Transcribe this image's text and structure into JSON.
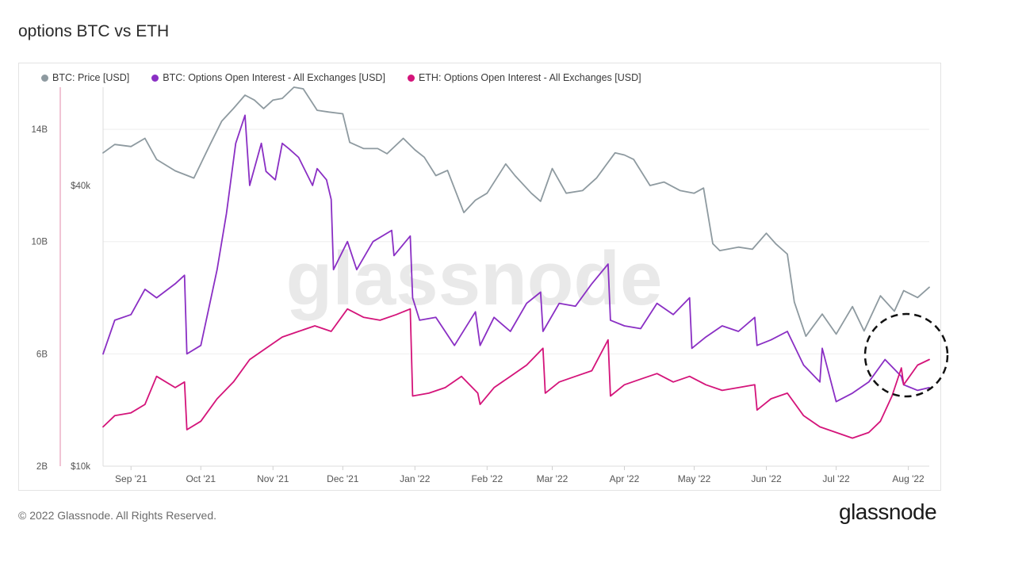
{
  "title": "options BTC vs ETH",
  "footer": "© 2022 Glassnode. All Rights Reserved.",
  "brand": "glassnode",
  "watermark": "glassnode",
  "colors": {
    "btc_price": "#8e9aa0",
    "btc_oi": "#8a2fc4",
    "eth_oi": "#d4147a",
    "grid": "#eeeeee",
    "axis_text": "#555555",
    "watermark": "#e9e9e9"
  },
  "chart_data": {
    "type": "line",
    "title": "options BTC vs ETH",
    "x_ticks": [
      "Sep '21",
      "Oct '21",
      "Nov '21",
      "Dec '21",
      "Jan '22",
      "Feb '22",
      "Mar '22",
      "Apr '22",
      "May '22",
      "Jun '22",
      "Jul '22",
      "Aug '22"
    ],
    "x_range": [
      "2021-08-20",
      "2022-08-10"
    ],
    "left_axis": {
      "ticks": [
        "2B",
        "6B",
        "10B",
        "14B"
      ],
      "range": [
        2,
        15.5
      ]
    },
    "price_axis": {
      "ticks": [
        "$10k",
        "$40k"
      ],
      "scale": "log",
      "range": [
        10000,
        65000
      ]
    },
    "grid": true,
    "legend_position": "top-left",
    "series": [
      {
        "name": "BTC: Price [USD]",
        "axis": "price",
        "dates": [
          "2021-08-20",
          "2021-08-25",
          "2021-09-01",
          "2021-09-07",
          "2021-09-12",
          "2021-09-20",
          "2021-09-28",
          "2021-10-05",
          "2021-10-10",
          "2021-10-15",
          "2021-10-20",
          "2021-10-24",
          "2021-10-28",
          "2021-11-01",
          "2021-11-05",
          "2021-11-10",
          "2021-11-14",
          "2021-11-20",
          "2021-11-25",
          "2021-12-01",
          "2021-12-04",
          "2021-12-10",
          "2021-12-16",
          "2021-12-20",
          "2021-12-27",
          "2022-01-01",
          "2022-01-05",
          "2022-01-10",
          "2022-01-15",
          "2022-01-22",
          "2022-01-27",
          "2022-02-01",
          "2022-02-09",
          "2022-02-13",
          "2022-02-20",
          "2022-02-24",
          "2022-03-01",
          "2022-03-07",
          "2022-03-14",
          "2022-03-20",
          "2022-03-28",
          "2022-04-01",
          "2022-04-05",
          "2022-04-12",
          "2022-04-18",
          "2022-04-25",
          "2022-05-01",
          "2022-05-05",
          "2022-05-09",
          "2022-05-12",
          "2022-05-20",
          "2022-05-26",
          "2022-06-01",
          "2022-06-05",
          "2022-06-10",
          "2022-06-13",
          "2022-06-18",
          "2022-06-25",
          "2022-07-01",
          "2022-07-08",
          "2022-07-13",
          "2022-07-20",
          "2022-07-26",
          "2022-07-30",
          "2022-08-05",
          "2022-08-10"
        ],
        "values": [
          47000,
          49000,
          48500,
          50500,
          45500,
          43000,
          41500,
          49000,
          55000,
          58500,
          62500,
          61000,
          58500,
          61000,
          61500,
          65000,
          64500,
          58000,
          57500,
          57000,
          49500,
          48000,
          48000,
          46800,
          50500,
          47700,
          46000,
          42000,
          43100,
          35000,
          37200,
          38500,
          44500,
          42000,
          38500,
          37000,
          43500,
          38500,
          39000,
          41500,
          47000,
          46500,
          45500,
          40000,
          40700,
          39000,
          38500,
          39500,
          30000,
          29000,
          29500,
          29200,
          31600,
          30000,
          28500,
          22500,
          19000,
          21200,
          19200,
          22000,
          19500,
          23200,
          21500,
          23800,
          23000,
          24200
        ]
      },
      {
        "name": "BTC: Options Open Interest - All Exchanges [USD]",
        "axis": "left",
        "dates": [
          "2021-08-20",
          "2021-08-25",
          "2021-09-01",
          "2021-09-07",
          "2021-09-12",
          "2021-09-20",
          "2021-09-24",
          "2021-09-25",
          "2021-10-01",
          "2021-10-08",
          "2021-10-12",
          "2021-10-16",
          "2021-10-20",
          "2021-10-22",
          "2021-10-27",
          "2021-10-29",
          "2021-11-02",
          "2021-11-05",
          "2021-11-08",
          "2021-11-12",
          "2021-11-18",
          "2021-11-20",
          "2021-11-24",
          "2021-11-26",
          "2021-11-27",
          "2021-12-03",
          "2021-12-07",
          "2021-12-14",
          "2021-12-22",
          "2021-12-23",
          "2021-12-30",
          "2021-12-31",
          "2022-01-03",
          "2022-01-10",
          "2022-01-18",
          "2022-01-27",
          "2022-01-29",
          "2022-02-04",
          "2022-02-11",
          "2022-02-18",
          "2022-02-24",
          "2022-02-25",
          "2022-03-04",
          "2022-03-11",
          "2022-03-18",
          "2022-03-25",
          "2022-03-26",
          "2022-04-01",
          "2022-04-08",
          "2022-04-15",
          "2022-04-22",
          "2022-04-29",
          "2022-04-30",
          "2022-05-06",
          "2022-05-13",
          "2022-05-20",
          "2022-05-27",
          "2022-05-28",
          "2022-06-03",
          "2022-06-10",
          "2022-06-17",
          "2022-06-24",
          "2022-06-25",
          "2022-07-01",
          "2022-07-08",
          "2022-07-15",
          "2022-07-22",
          "2022-07-29",
          "2022-07-30",
          "2022-08-05",
          "2022-08-10"
        ],
        "values": [
          6.0,
          7.2,
          7.4,
          8.3,
          8.0,
          8.5,
          8.8,
          6.0,
          6.3,
          9.0,
          11.0,
          13.5,
          14.5,
          12.0,
          13.5,
          12.5,
          12.2,
          13.5,
          13.3,
          13.0,
          12.0,
          12.6,
          12.2,
          11.5,
          9.0,
          10.0,
          9.0,
          10.0,
          10.4,
          9.5,
          10.2,
          8.0,
          7.2,
          7.3,
          6.3,
          7.5,
          6.3,
          7.3,
          6.8,
          7.8,
          8.2,
          6.8,
          7.8,
          7.7,
          8.5,
          9.2,
          7.2,
          7.0,
          6.9,
          7.8,
          7.4,
          8.0,
          6.2,
          6.6,
          7.0,
          6.8,
          7.3,
          6.3,
          6.5,
          6.8,
          5.6,
          5.0,
          6.2,
          4.3,
          4.6,
          5.0,
          5.8,
          5.2,
          4.9,
          4.7,
          4.8
        ]
      },
      {
        "name": "ETH: Options Open Interest - All Exchanges [USD]",
        "axis": "left",
        "dates": [
          "2021-08-20",
          "2021-08-25",
          "2021-09-01",
          "2021-09-07",
          "2021-09-12",
          "2021-09-20",
          "2021-09-24",
          "2021-09-25",
          "2021-10-01",
          "2021-10-08",
          "2021-10-15",
          "2021-10-22",
          "2021-10-29",
          "2021-11-05",
          "2021-11-12",
          "2021-11-19",
          "2021-11-26",
          "2021-12-03",
          "2021-12-10",
          "2021-12-17",
          "2021-12-24",
          "2021-12-30",
          "2021-12-31",
          "2022-01-07",
          "2022-01-14",
          "2022-01-21",
          "2022-01-28",
          "2022-01-29",
          "2022-02-04",
          "2022-02-11",
          "2022-02-18",
          "2022-02-25",
          "2022-02-26",
          "2022-03-04",
          "2022-03-11",
          "2022-03-18",
          "2022-03-25",
          "2022-03-26",
          "2022-04-01",
          "2022-04-08",
          "2022-04-15",
          "2022-04-22",
          "2022-04-29",
          "2022-05-06",
          "2022-05-13",
          "2022-05-20",
          "2022-05-27",
          "2022-05-28",
          "2022-06-03",
          "2022-06-10",
          "2022-06-17",
          "2022-06-24",
          "2022-07-01",
          "2022-07-08",
          "2022-07-15",
          "2022-07-20",
          "2022-07-25",
          "2022-07-29",
          "2022-07-30",
          "2022-08-05",
          "2022-08-10"
        ],
        "values": [
          3.4,
          3.8,
          3.9,
          4.2,
          5.2,
          4.8,
          5.0,
          3.3,
          3.6,
          4.4,
          5.0,
          5.8,
          6.2,
          6.6,
          6.8,
          7.0,
          6.8,
          7.6,
          7.3,
          7.2,
          7.4,
          7.6,
          4.5,
          4.6,
          4.8,
          5.2,
          4.6,
          4.2,
          4.8,
          5.2,
          5.6,
          6.2,
          4.6,
          5.0,
          5.2,
          5.4,
          6.5,
          4.5,
          4.9,
          5.1,
          5.3,
          5.0,
          5.2,
          4.9,
          4.7,
          4.8,
          4.9,
          4.0,
          4.4,
          4.6,
          3.8,
          3.4,
          3.2,
          3.0,
          3.2,
          3.6,
          4.5,
          5.5,
          4.9,
          5.6,
          5.8
        ]
      }
    ]
  }
}
